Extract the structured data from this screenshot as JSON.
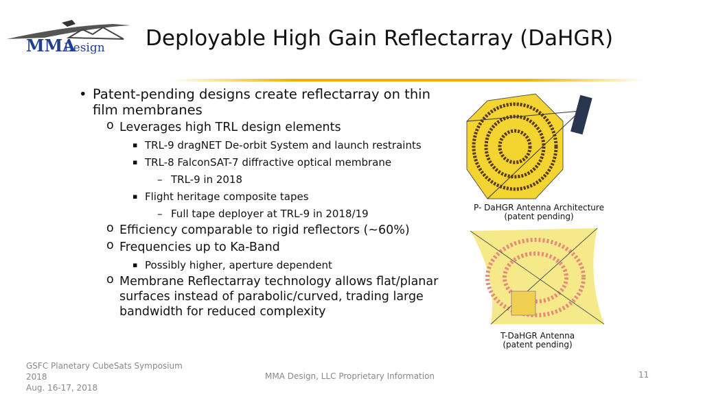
{
  "logo": {
    "brand": "MMA",
    "suffix": "Design"
  },
  "title": "Deployable High Gain Reflectarray (DaHGR)",
  "bullets": [
    {
      "text": "Patent-pending designs create reflectarray on thin film membranes",
      "children": [
        {
          "text": "Leverages high TRL design elements",
          "children": [
            {
              "text": "TRL-9 dragNET De-orbit System and launch restraints"
            },
            {
              "text": "TRL-8 FalconSAT-7 diffractive optical membrane",
              "children": [
                {
                  "text": "TRL-9 in 2018"
                }
              ]
            },
            {
              "text": "Flight heritage composite tapes",
              "children": [
                {
                  "text": "Full tape deployer at TRL-9 in 2018/19"
                }
              ]
            }
          ]
        },
        {
          "text": "Efficiency comparable to rigid reflectors (~60%)"
        },
        {
          "text": "Frequencies up to Ka-Band",
          "children": [
            {
              "text": "Possibly higher, aperture dependent"
            }
          ]
        },
        {
          "text": "Membrane Reflectarray technology allows flat/planar surfaces instead of parabolic/curved, trading large bandwidth for reduced complexity"
        }
      ]
    }
  ],
  "figures": [
    {
      "caption": [
        "P- DaHGR Antenna Architecture",
        "(patent pending)"
      ]
    },
    {
      "caption": [
        "T-DaHGR Antenna",
        "(patent pending)"
      ]
    }
  ],
  "footer": {
    "event": [
      "GSFC Planetary CubeSats Symposium 2018",
      "Aug. 16-17, 2018"
    ],
    "center": "MMA Design, LLC Proprietary Information",
    "page": "11"
  }
}
